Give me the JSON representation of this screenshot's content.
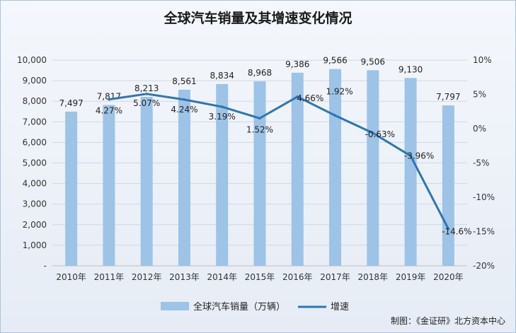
{
  "chart_data": {
    "type": "bar+line",
    "title": "全球汽车销量及其增速变化情况",
    "categories": [
      "2010年",
      "2011年",
      "2012年",
      "2013年",
      "2014年",
      "2015年",
      "2016年",
      "2017年",
      "2018年",
      "2019年",
      "2020年"
    ],
    "series": [
      {
        "name": "全球汽车销量（万辆）",
        "type": "bar",
        "axis": "left",
        "values": [
          7497,
          7817,
          8213,
          8561,
          8834,
          8968,
          9386,
          9566,
          9506,
          9130,
          7797
        ],
        "labels": [
          "7,497",
          "7,817",
          "8,213",
          "8,561",
          "8,834",
          "8,968",
          "9,386",
          "9,566",
          "9,506",
          "9,130",
          "7,797"
        ]
      },
      {
        "name": "增速",
        "type": "line",
        "axis": "right",
        "values": [
          null,
          4.27,
          5.07,
          4.24,
          3.19,
          1.52,
          4.66,
          1.92,
          -0.63,
          -3.96,
          -14.6
        ],
        "labels": [
          "",
          "4.27%",
          "5.07%",
          "4.24%",
          "3.19%",
          "1.52%",
          "4.66%",
          "1.92%",
          "-0.63%",
          "-3.96%",
          "-14.6%"
        ]
      }
    ],
    "ylim_left": [
      0,
      10000
    ],
    "ylim_right": [
      -20,
      10
    ],
    "yticks_left": [
      "-",
      "1,000",
      "2,000",
      "3,000",
      "4,000",
      "5,000",
      "6,000",
      "7,000",
      "8,000",
      "9,000",
      "10,000"
    ],
    "yticks_right": [
      "-20%",
      "-15%",
      "-10%",
      "-5%",
      "0%",
      "5%",
      "10%"
    ],
    "grid": true,
    "legend": "bottom",
    "colors": {
      "bar": "#9dc3e6",
      "line": "#2e75b6"
    }
  },
  "source": "制图：《金证研》北方资本中心"
}
